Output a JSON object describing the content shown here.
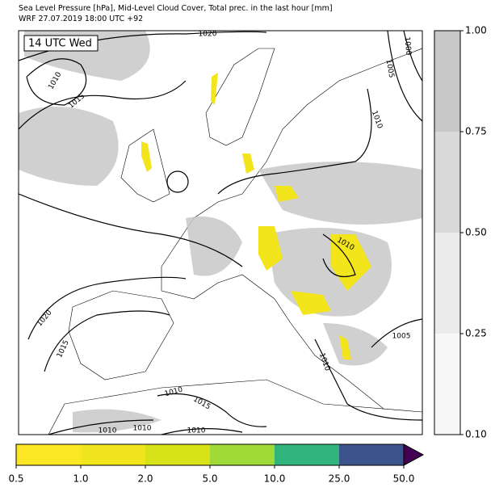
{
  "header": {
    "line1": "Sea Level Pressure [hPa], Mid-Level Cloud Cover, Total prec. in the last hour [mm]",
    "line2": "WRF 27.07.2019 18:00 UTC +92"
  },
  "time_label": "14 UTC Wed",
  "isobar_labels": [
    "1020",
    "1010",
    "1015",
    "1000",
    "1005",
    "1010",
    "1010",
    "1005",
    "1010",
    "1020",
    "1015",
    "1010",
    "1015",
    "1010",
    "1010",
    "1010"
  ],
  "cloud_colorbar": {
    "ticks": [
      "1.00",
      "0.75",
      "0.50",
      "0.25",
      "0.10"
    ],
    "colors": [
      "#c8c8c8",
      "#d9d9d9",
      "#ebebeb",
      "#f7f7f7"
    ]
  },
  "precip_colorbar": {
    "ticks": [
      "0.5",
      "1.0",
      "2.0",
      "5.0",
      "10.0",
      "25.0",
      "50.0"
    ],
    "colors": [
      "#fde725",
      "#f1e51d",
      "#d8e219",
      "#a0da39",
      "#2fb47c",
      "#3b528b",
      "#440154"
    ]
  }
}
